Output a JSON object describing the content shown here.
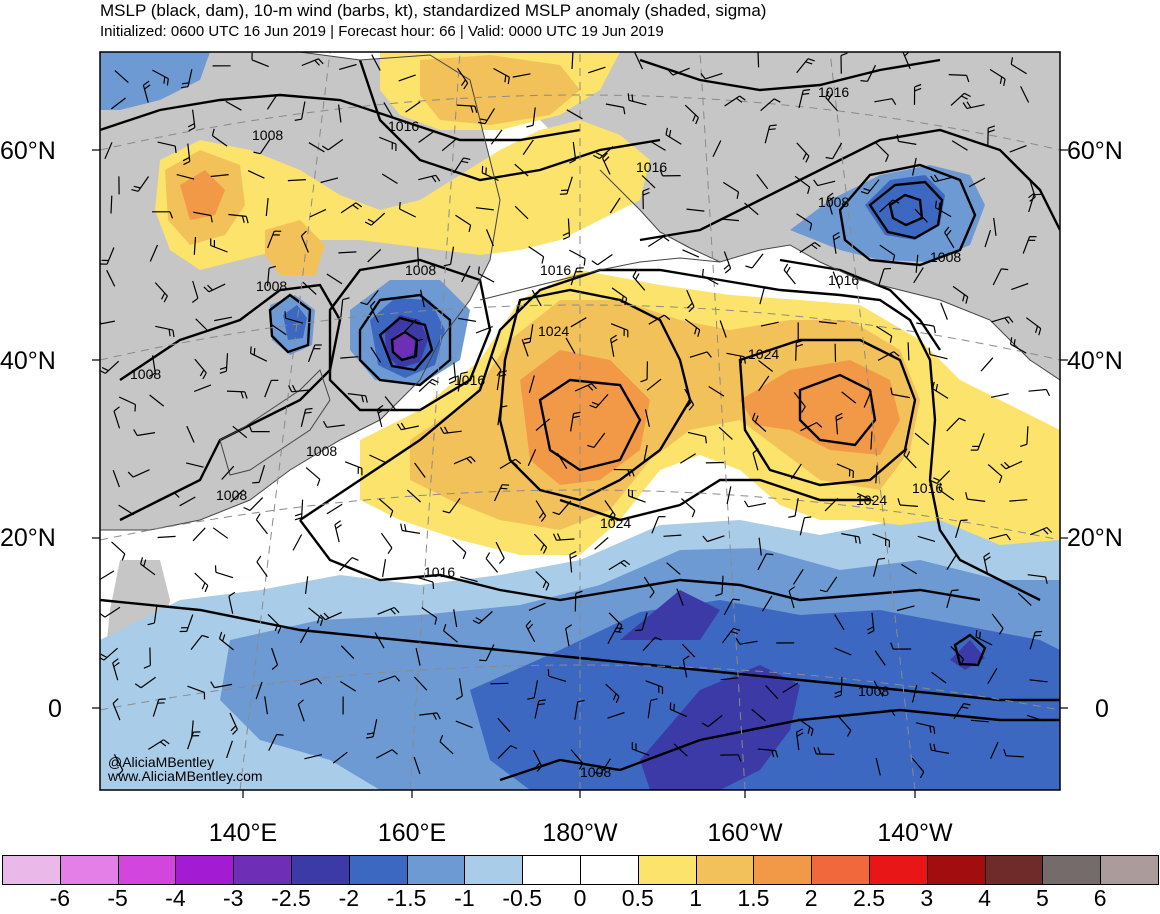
{
  "header": {
    "title": "MSLP (black, dam), 10-m wind (barbs, kt), standardized MSLP anomaly (shaded, sigma)",
    "subtitle": "Initialized: 0600 UTC 16 Jun 2019 | Forecast hour: 66 | Valid: 0000 UTC 19 Jun 2019"
  },
  "map": {
    "region": "North Pacific Ocean",
    "projection": "polar stereographic",
    "lat_labels_left": [
      "60°N",
      "40°N",
      "20°N",
      "0"
    ],
    "lat_labels_right": [
      "60°N",
      "40°N",
      "20°N",
      "0"
    ],
    "lon_labels": [
      "140°E",
      "160°E",
      "180°W",
      "160°W",
      "140°W"
    ],
    "contour_labels": [
      "1008",
      "1016",
      "1008",
      "1016",
      "1016",
      "1008",
      "1008",
      "1008",
      "1008",
      "1016",
      "1016",
      "1024",
      "1016",
      "1024",
      "1008",
      "1008",
      "1024",
      "1016",
      "1024",
      "1016",
      "1008",
      "1008"
    ],
    "colors": {
      "land": "#c6c6c6",
      "coast": "#444444",
      "contour": "#000000"
    }
  },
  "credit": {
    "handle": "@AliciaMBentley",
    "website": "www.AliciaMBentley.com"
  },
  "colorbar": {
    "labels": [
      "-6",
      "-5",
      "-4",
      "-3",
      "-2.5",
      "-2",
      "-1.5",
      "-1",
      "-0.5",
      "0",
      "0.5",
      "1",
      "1.5",
      "2",
      "2.5",
      "3",
      "4",
      "5",
      "6"
    ],
    "colors": [
      "#ebb9e9",
      "#e37fe6",
      "#d346de",
      "#a31cd3",
      "#6f2eb6",
      "#3b3aa6",
      "#3c68c2",
      "#6e9ad4",
      "#a9cde9",
      "#ffffff",
      "#ffffff",
      "#fbe36c",
      "#f3c15a",
      "#f29948",
      "#f1683c",
      "#e81617",
      "#a20d0e",
      "#6f2a2a",
      "#756b6b",
      "#ab9b9b"
    ]
  }
}
